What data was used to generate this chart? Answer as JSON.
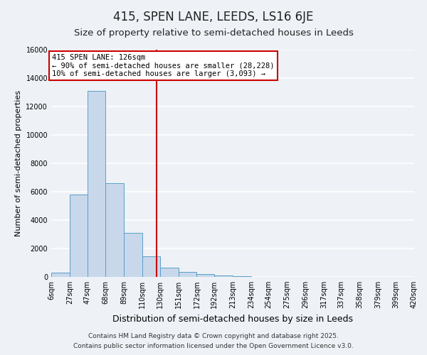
{
  "title": "415, SPEN LANE, LEEDS, LS16 6JE",
  "subtitle": "Size of property relative to semi-detached houses in Leeds",
  "xlabel": "Distribution of semi-detached houses by size in Leeds",
  "ylabel": "Number of semi-detached properties",
  "bin_edges": [
    6,
    27,
    47,
    68,
    89,
    110,
    130,
    151,
    172,
    192,
    213,
    234,
    254,
    275,
    296,
    317,
    337,
    358,
    379,
    399,
    420
  ],
  "counts": [
    300,
    5800,
    13100,
    6600,
    3100,
    1450,
    650,
    350,
    200,
    100,
    50,
    0,
    0,
    0,
    0,
    0,
    0,
    0,
    0,
    0
  ],
  "bar_facecolor": "#c8d8ea",
  "bar_edgecolor": "#5a9ec8",
  "property_size": 126,
  "vline_color": "#cc0000",
  "annotation_text": "415 SPEN LANE: 126sqm\n← 90% of semi-detached houses are smaller (28,228)\n10% of semi-detached houses are larger (3,093) →",
  "annotation_box_edgecolor": "#cc0000",
  "annotation_box_facecolor": "#ffffff",
  "ylim": [
    0,
    16000
  ],
  "yticks": [
    0,
    2000,
    4000,
    6000,
    8000,
    10000,
    12000,
    14000,
    16000
  ],
  "background_color": "#eef2f7",
  "grid_color": "#ffffff",
  "footer_line1": "Contains HM Land Registry data © Crown copyright and database right 2025.",
  "footer_line2": "Contains public sector information licensed under the Open Government Licence v3.0.",
  "title_fontsize": 12,
  "subtitle_fontsize": 9.5,
  "tick_label_fontsize": 7,
  "ylabel_fontsize": 8,
  "xlabel_fontsize": 9
}
